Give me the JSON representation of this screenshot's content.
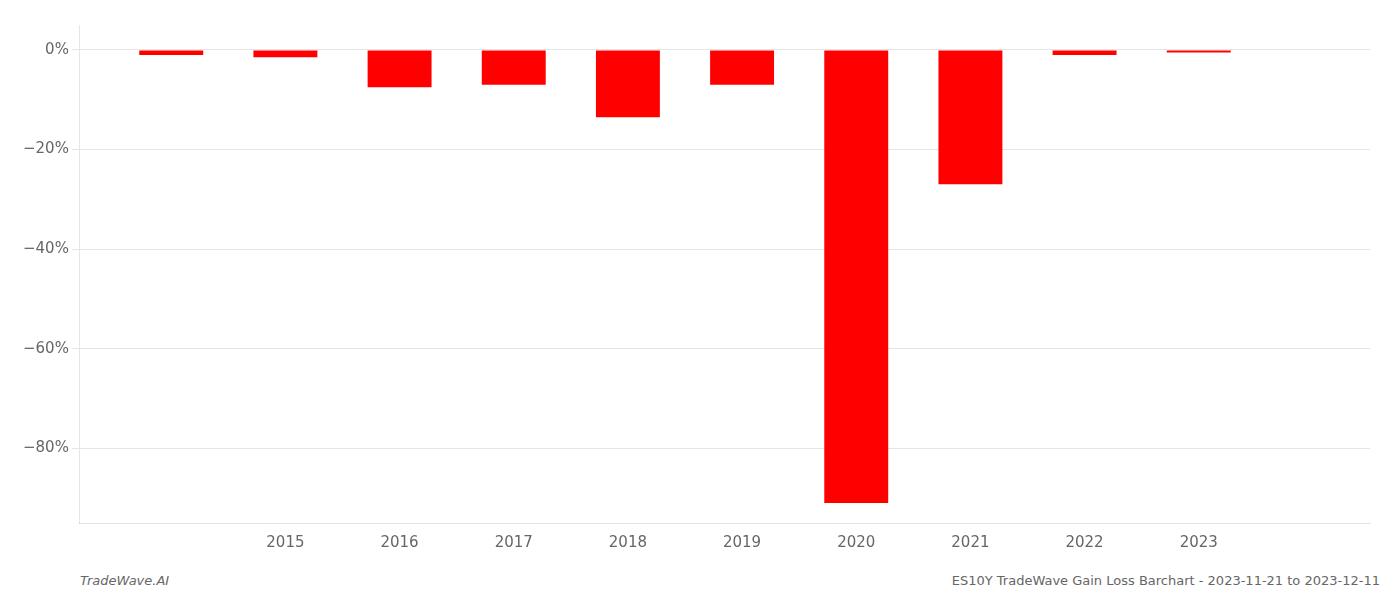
{
  "chart_data": {
    "type": "bar",
    "x": [
      2014,
      2015,
      2016,
      2017,
      2018,
      2019,
      2020,
      2021,
      2022,
      2023
    ],
    "values": [
      -1.0,
      -1.5,
      -7.5,
      -7.0,
      -13.5,
      -7.0,
      -91.0,
      -27.0,
      -1.0,
      -0.5
    ],
    "color": "#ff0000",
    "xlim": [
      2013.2,
      2024.5
    ],
    "xticks": [
      2015,
      2016,
      2017,
      2018,
      2019,
      2020,
      2021,
      2022,
      2023
    ],
    "ylim": [
      -95,
      5
    ],
    "yticks": [
      {
        "value": 0,
        "label": "0%"
      },
      {
        "value": -20,
        "label": "−20%"
      },
      {
        "value": -40,
        "label": "−40%"
      },
      {
        "value": -60,
        "label": "−60%"
      },
      {
        "value": -80,
        "label": "−80%"
      }
    ],
    "grid": "y",
    "annotations": [
      "TradeWave.AI",
      "ES10Y TradeWave Gain Loss Barchart - 2023-11-21 to 2023-12-11"
    ]
  }
}
